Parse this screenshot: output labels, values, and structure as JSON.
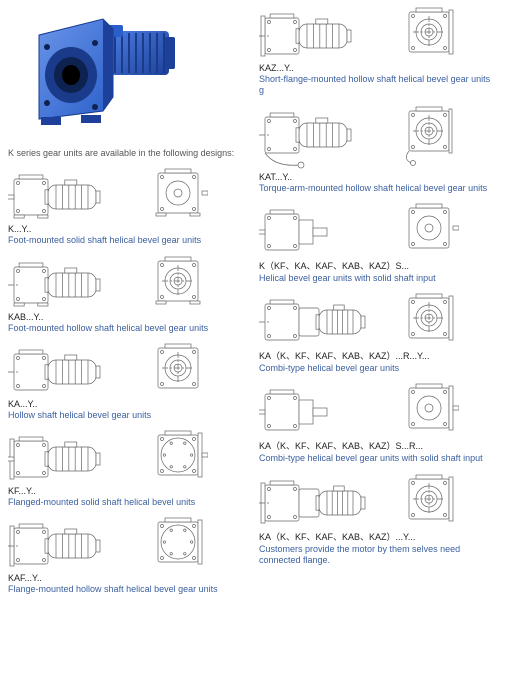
{
  "colors": {
    "text": "#222222",
    "link": "#3a5fa0",
    "hero_blue": "#2a5fc9",
    "hero_blue_dark": "#1d419a",
    "stroke": "#666666",
    "bg": "#ffffff"
  },
  "intro": "K series gear units are available in the following designs:",
  "left": [
    {
      "code": "K...Y..",
      "desc": "Foot-mounted solid shaft helical bevel gear units",
      "variant": "foot_solid"
    },
    {
      "code": "KAB...Y..",
      "desc": "Foot-mounted hollow shaft helical bevel gear units",
      "variant": "foot_hollow"
    },
    {
      "code": "KA...Y..",
      "desc": "Hollow shaft helical bevel gear units",
      "variant": "hollow"
    },
    {
      "code": "KF...Y..",
      "desc": "Flanged-mounted solid shaft helical bevel units",
      "variant": "flange_solid"
    },
    {
      "code": "KAF...Y..",
      "desc": "Flange-mounted hollow shaft helical bevel gear units",
      "variant": "flange_hollow"
    }
  ],
  "right": [
    {
      "code": "KAZ...Y..",
      "desc": "Short-flange-mounted hollow shaft helical bevel gear units",
      "desc2": "g",
      "variant": "short_flange"
    },
    {
      "code": "KAT...Y..",
      "desc": "Torque-arm-mounted hollow shaft helical bevel gear units",
      "variant": "torque_arm"
    },
    {
      "code": "K（KF、KA、KAF、KAB、KAZ）S...",
      "desc": "Helical bevel gear units with solid shaft input",
      "variant": "solid_input"
    },
    {
      "code": "KA（K、KF、KAF、KAB、KAZ）...R...Y...",
      "desc": "Combi-type helical bevel gear units",
      "variant": "combi"
    },
    {
      "code": "KA（K、KF、KAF、KAB、KAZ）S...R...",
      "desc": "Combi-type helical bevel gear units with solid shaft input",
      "variant": "combi_solid"
    },
    {
      "code": "KA（K、KF、KAF、KAB、KAZ）...Y...",
      "desc": "Customers provide the motor by them selves need connected flange.",
      "variant": "customer"
    }
  ]
}
